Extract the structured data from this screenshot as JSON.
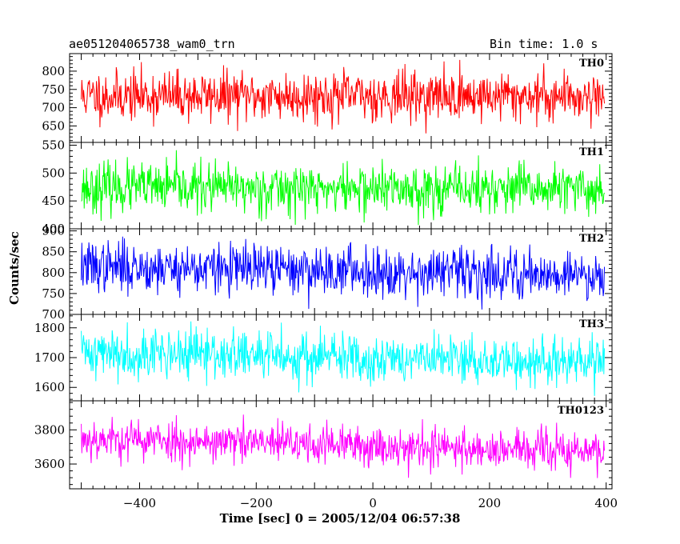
{
  "header": {
    "title_left": "ae051204065738_wam0_trn",
    "title_right": "Bin time: 1.0 s"
  },
  "chart_data": [
    {
      "type": "line",
      "series": [
        {
          "name": "TH0",
          "color": "#ff0000",
          "mean": 732,
          "noise": 34,
          "trend": 0,
          "seed": 11
        }
      ],
      "ylim": [
        605,
        848
      ],
      "yticks": [
        650,
        700,
        750,
        800
      ],
      "ylabels": [
        "650",
        "700",
        "750",
        "800"
      ],
      "xlim": [
        -520,
        410
      ]
    },
    {
      "type": "line",
      "series": [
        {
          "name": "TH1",
          "color": "#00ff00",
          "mean": 472,
          "noise": 22,
          "trend": -4,
          "seed": 23
        }
      ],
      "ylim": [
        400,
        555
      ],
      "yticks": [
        400,
        450,
        500,
        550
      ],
      "ylabels": [
        "400",
        "450",
        "500",
        "550"
      ],
      "xlim": [
        -520,
        410
      ]
    },
    {
      "type": "line",
      "series": [
        {
          "name": "TH2",
          "color": "#0000ff",
          "mean": 805,
          "noise": 30,
          "trend": -20,
          "seed": 37
        }
      ],
      "ylim": [
        700,
        905
      ],
      "yticks": [
        700,
        750,
        800,
        850,
        900
      ],
      "ylabels": [
        "700",
        "750",
        "800",
        "850",
        "900"
      ],
      "xlim": [
        -520,
        410
      ]
    },
    {
      "type": "line",
      "series": [
        {
          "name": "TH3",
          "color": "#00ffff",
          "mean": 1700,
          "noise": 42,
          "trend": -40,
          "seed": 41
        }
      ],
      "ylim": [
        1555,
        1845
      ],
      "yticks": [
        1600,
        1700,
        1800
      ],
      "ylabels": [
        "1600",
        "1700",
        "1800"
      ],
      "xlim": [
        -520,
        410
      ]
    },
    {
      "type": "line",
      "series": [
        {
          "name": "TH0123",
          "color": "#ff00ff",
          "mean": 3710,
          "noise": 60,
          "trend": -80,
          "seed": 53
        }
      ],
      "ylim": [
        3455,
        3970
      ],
      "yticks": [
        3600,
        3800
      ],
      "ylabels": [
        "3600",
        "3800"
      ],
      "xlim": [
        -520,
        410
      ],
      "xticks": [
        -400,
        -200,
        0,
        200,
        400
      ],
      "xlabels": [
        "−400",
        "−200",
        "0",
        "200",
        "400"
      ]
    }
  ],
  "axes": {
    "xlabel": "Time [sec] 0 = 2005/12/04 06:57:38",
    "ylabel": "Counts/sec",
    "data_range": [
      -500,
      397
    ]
  }
}
